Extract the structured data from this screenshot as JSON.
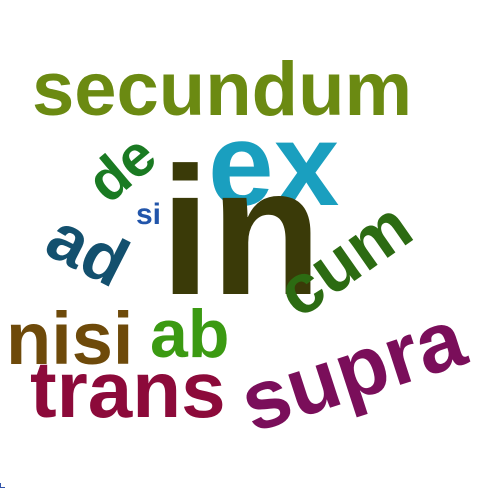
{
  "word_cloud": {
    "words": [
      {
        "key": "secundum",
        "text": "secundum",
        "color": "#6b8a12"
      },
      {
        "key": "ex",
        "text": "ex",
        "color": "#1a9fbf"
      },
      {
        "key": "de",
        "text": "de",
        "color": "#1a7a22"
      },
      {
        "key": "si",
        "text": "si",
        "color": "#2255aa"
      },
      {
        "key": "ad",
        "text": "ad",
        "color": "#13506e"
      },
      {
        "key": "in",
        "text": "in",
        "color": "#3a3a08"
      },
      {
        "key": "cum",
        "text": "cum",
        "color": "#2c6b12"
      },
      {
        "key": "ab",
        "text": "ab",
        "color": "#3b9a12"
      },
      {
        "key": "nisi",
        "text": "nisi",
        "color": "#6e4a0a"
      },
      {
        "key": "trans",
        "text": "trans",
        "color": "#8c0a3a"
      },
      {
        "key": "supra",
        "text": "supra",
        "color": "#7a0e5a"
      }
    ]
  }
}
